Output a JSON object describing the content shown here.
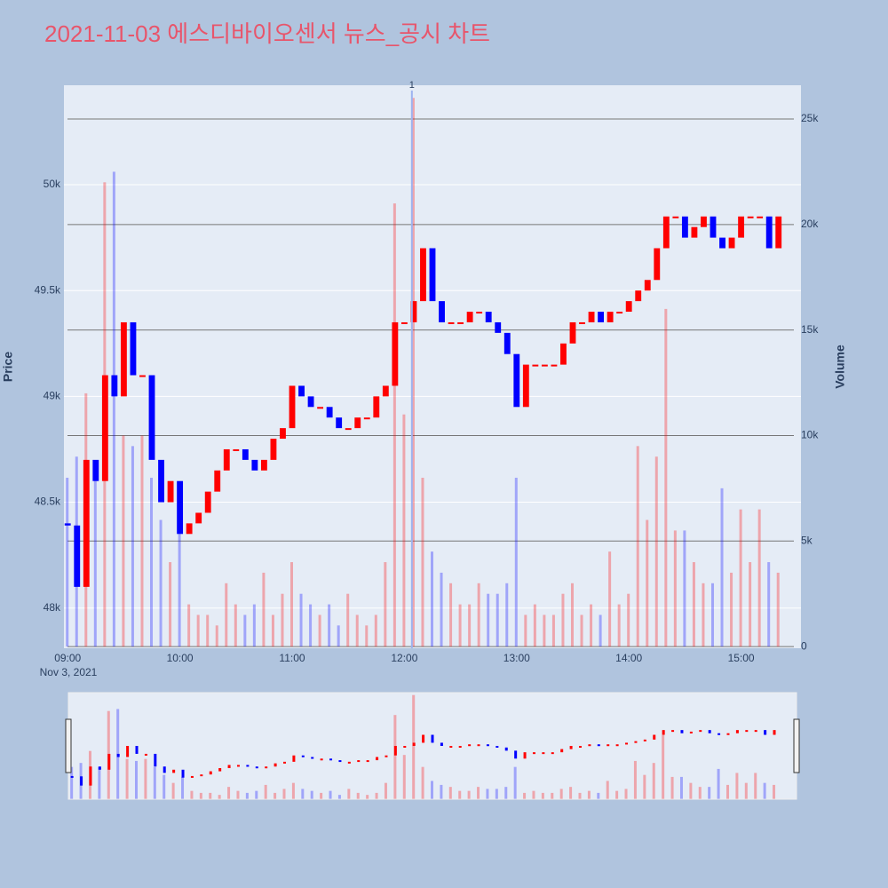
{
  "chart_data": {
    "type": "candlestick",
    "title": "2021-11-03 에스디바이오센서 뉴스_공시 차트",
    "y_title": "Price",
    "y2_title": "Volume",
    "x_date_label": "Nov 3, 2021",
    "increasing_color": "#ff0000",
    "decreasing_color": "#0000ff",
    "x": [
      "09:00",
      "09:05",
      "09:10",
      "09:15",
      "09:20",
      "09:25",
      "09:30",
      "09:35",
      "09:40",
      "09:45",
      "09:50",
      "09:55",
      "10:00",
      "10:05",
      "10:10",
      "10:15",
      "10:20",
      "10:25",
      "10:30",
      "10:35",
      "10:40",
      "10:45",
      "10:50",
      "10:55",
      "11:00",
      "11:05",
      "11:10",
      "11:15",
      "11:20",
      "11:25",
      "11:30",
      "11:35",
      "11:40",
      "11:45",
      "11:50",
      "11:55",
      "12:00",
      "12:05",
      "12:10",
      "12:15",
      "12:20",
      "12:25",
      "12:30",
      "12:35",
      "12:40",
      "12:45",
      "12:50",
      "12:55",
      "13:00",
      "13:05",
      "13:10",
      "13:15",
      "13:20",
      "13:25",
      "13:30",
      "13:35",
      "13:40",
      "13:45",
      "13:50",
      "13:55",
      "14:00",
      "14:05",
      "14:10",
      "14:15",
      "14:20",
      "14:25",
      "14:30",
      "14:35",
      "14:40",
      "14:45",
      "14:50",
      "14:55",
      "15:00",
      "15:05",
      "15:10",
      "15:15",
      "15:20"
    ],
    "open": [
      48400,
      48390,
      48100,
      48700,
      48600,
      49100,
      49000,
      49350,
      49100,
      49100,
      48700,
      48500,
      48600,
      48350,
      48400,
      48450,
      48550,
      48650,
      48750,
      48750,
      48700,
      48650,
      48700,
      48800,
      48850,
      49050,
      49000,
      48950,
      48950,
      48900,
      48850,
      48850,
      48900,
      48900,
      49000,
      49050,
      49350,
      49350,
      49450,
      49700,
      49450,
      49350,
      49350,
      49350,
      49400,
      49400,
      49350,
      49300,
      49200,
      48950,
      49150,
      49150,
      49150,
      49150,
      49250,
      49350,
      49350,
      49400,
      49350,
      49400,
      49400,
      49450,
      49500,
      49550,
      49700,
      49850,
      49850,
      49750,
      49800,
      49850,
      49750,
      49700,
      49750,
      49850,
      49850,
      49850,
      49700
    ],
    "close": [
      48390,
      48100,
      48700,
      48600,
      49100,
      49000,
      49350,
      49100,
      49100,
      48700,
      48500,
      48600,
      48350,
      48400,
      48450,
      48550,
      48650,
      48750,
      48750,
      48700,
      48650,
      48700,
      48800,
      48850,
      49050,
      49000,
      48950,
      48950,
      48900,
      48850,
      48850,
      48900,
      48900,
      49000,
      49050,
      49350,
      49350,
      49450,
      49700,
      49450,
      49350,
      49350,
      49350,
      49400,
      49400,
      49350,
      49300,
      49200,
      48950,
      49150,
      49150,
      49150,
      49150,
      49250,
      49350,
      49350,
      49400,
      49350,
      49400,
      49400,
      49450,
      49500,
      49550,
      49700,
      49850,
      49850,
      49750,
      49800,
      49850,
      49750,
      49700,
      49750,
      49850,
      49850,
      49850,
      49700,
      49850
    ],
    "volume": [
      8000,
      9000,
      12000,
      8000,
      22000,
      22500,
      10000,
      9500,
      10000,
      8000,
      6000,
      4000,
      5500,
      2000,
      1500,
      1500,
      1000,
      3000,
      2000,
      1500,
      2000,
      3500,
      1500,
      2500,
      4000,
      2500,
      2000,
      1500,
      2000,
      1000,
      2500,
      1500,
      1000,
      1500,
      4000,
      21000,
      11000,
      26000,
      8000,
      4500,
      3500,
      3000,
      2000,
      2000,
      3000,
      2500,
      2500,
      3000,
      8000,
      1500,
      2000,
      1500,
      1500,
      2500,
      3000,
      1500,
      2000,
      1500,
      4500,
      2000,
      2500,
      9500,
      6000,
      9000,
      16000,
      5500,
      5500,
      4000,
      3000,
      3000,
      7500,
      3500,
      6500,
      4000,
      6500,
      4000,
      3500
    ],
    "annotation": {
      "text": "1",
      "x": "12:04"
    },
    "xlim": [
      "08:58",
      "15:32"
    ],
    "xticks": [
      "09:00",
      "10:00",
      "11:00",
      "12:00",
      "13:00",
      "14:00",
      "15:00"
    ],
    "ylim": [
      47810,
      50470
    ],
    "yticks": [
      {
        "value": 48000,
        "label": "48k"
      },
      {
        "value": 48500,
        "label": "48.5k"
      },
      {
        "value": 49000,
        "label": "49k"
      },
      {
        "value": 49500,
        "label": "49.5k"
      },
      {
        "value": 50000,
        "label": "50k"
      }
    ],
    "y2lim": [
      -80,
      26600
    ],
    "y2ticks": [
      0,
      {
        "value": 5000,
        "label": "5k"
      },
      {
        "value": 10000,
        "label": "10k"
      },
      {
        "value": 15000,
        "label": "15k"
      },
      {
        "value": 20000,
        "label": "20k"
      },
      {
        "value": 25000,
        "label": "25k"
      }
    ]
  }
}
